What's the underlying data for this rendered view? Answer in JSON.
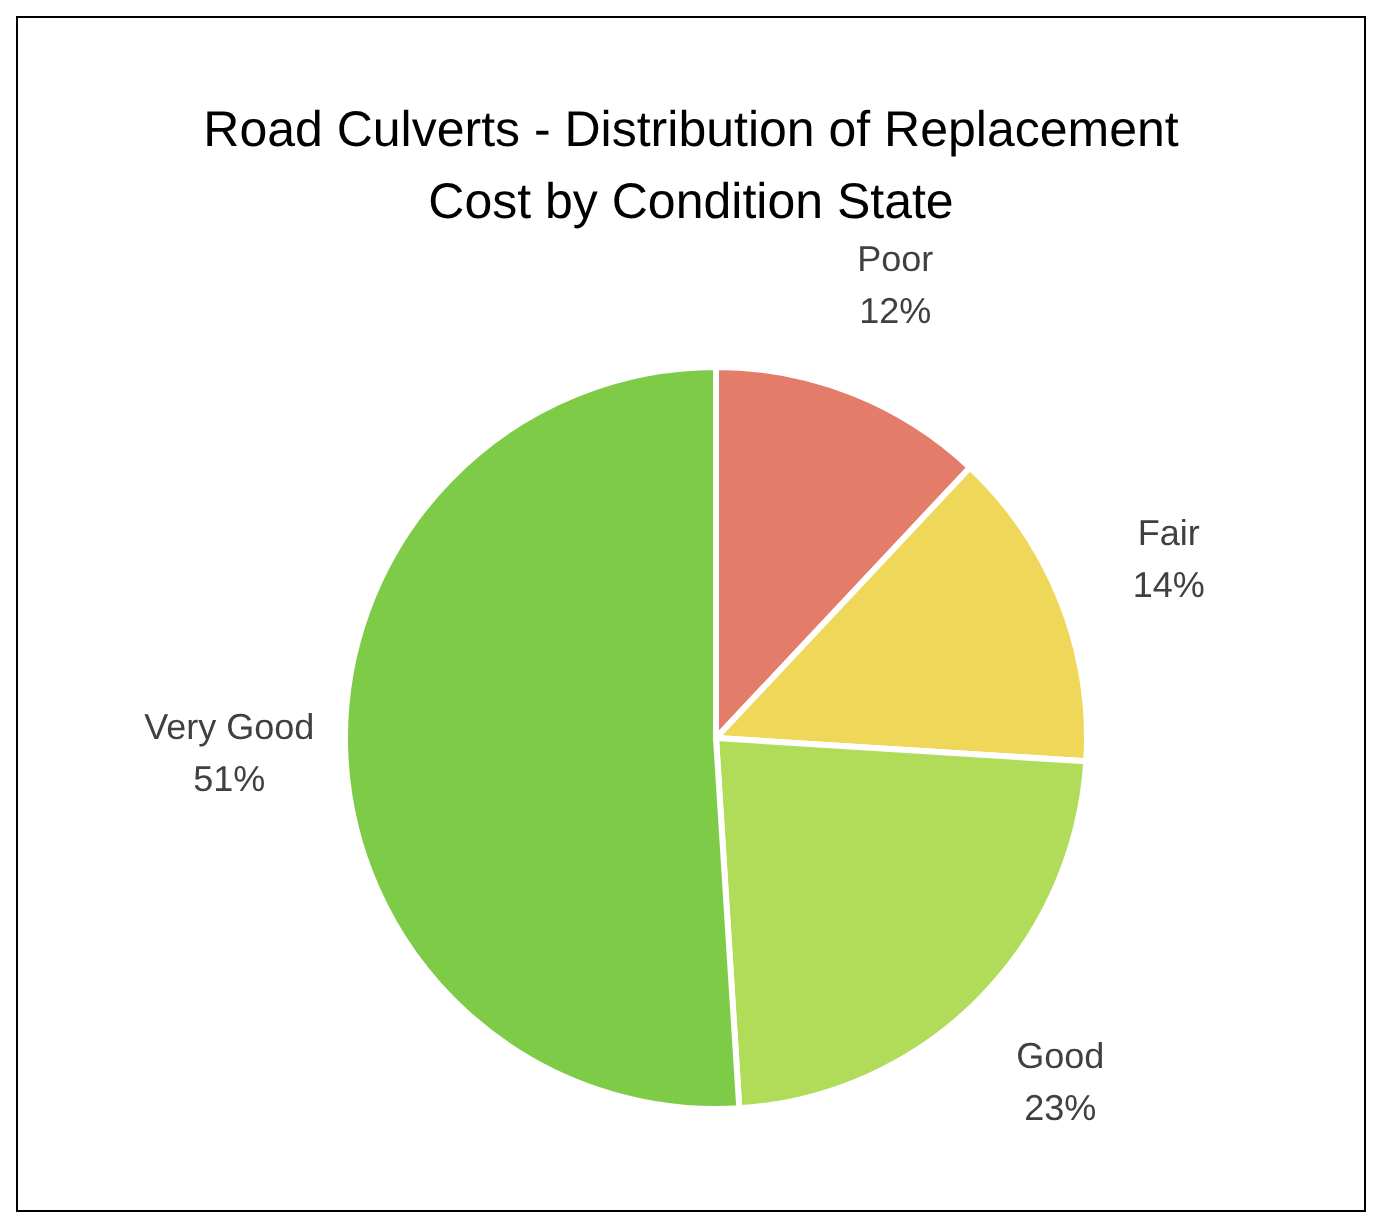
{
  "chart_data": {
    "type": "pie",
    "title": "Road Culverts - Distribution of Replacement Cost by Condition State",
    "categories": [
      "Poor",
      "Fair",
      "Good",
      "Very Good"
    ],
    "values": [
      12,
      14,
      23,
      51
    ],
    "value_labels": [
      "12%",
      "14%",
      "23%",
      "51%"
    ],
    "colors": [
      "#e47c6a",
      "#efd75a",
      "#b0dc5a",
      "#7dcb47"
    ],
    "legend": false
  }
}
